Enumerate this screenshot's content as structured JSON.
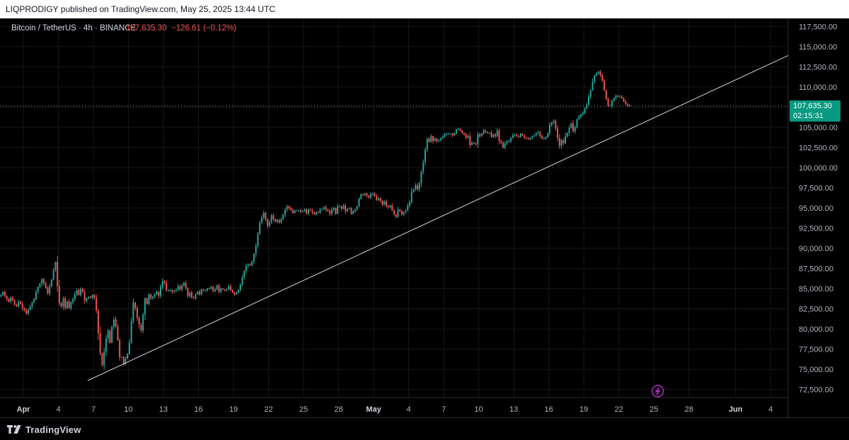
{
  "header": {
    "published_text": "LIQPRODIGY published on TradingView.com, May 25, 2025 13:44 UTC"
  },
  "legend": {
    "symbol": "Bitcoin / TetherUS · 4h · BINANCE",
    "price": "107,635.30",
    "change": "−126.61 (−0.12%)"
  },
  "price_tag": {
    "price": "107,635.30",
    "countdown": "02:15:31"
  },
  "footer": {
    "brand": "TradingView"
  },
  "colors": {
    "up": "#26a69a",
    "down": "#ef5350",
    "price_tag": "#089981",
    "background": "#000000",
    "axis_text": "#b2b5be",
    "trendline": "#d1d4dc",
    "event_icon": "#b02cc8"
  },
  "icons": {
    "event": "lightning-icon",
    "brand": "tradingview-logo-icon"
  },
  "chart_data": {
    "type": "candlestick",
    "title": "Bitcoin / TetherUS · 4h · BINANCE",
    "interval": "4h",
    "ylim": [
      71500,
      118500
    ],
    "y_ticks": [
      72500,
      75000,
      77500,
      80000,
      82500,
      85000,
      87500,
      90000,
      92500,
      95000,
      97500,
      100000,
      102500,
      105000,
      107500,
      110000,
      112500,
      115000,
      117500
    ],
    "y_tick_labels": [
      "72,500.00",
      "75,000.00",
      "77,500.00",
      "80,000.00",
      "82,500.00",
      "85,000.00",
      "87,500.00",
      "90,000.00",
      "92,500.00",
      "95,000.00",
      "97,500.00",
      "100,000.00",
      "102,500.00",
      "105,000.00",
      "107,500.00",
      "110,000.00",
      "112,500.00",
      "115,000.00",
      "117,500.00"
    ],
    "xlim": [
      "2025-03-30T00:00",
      "2025-06-05T12:00"
    ],
    "x_ticks": [
      "2025-04-01",
      "2025-04-04",
      "2025-04-07",
      "2025-04-10",
      "2025-04-13",
      "2025-04-16",
      "2025-04-19",
      "2025-04-22",
      "2025-04-25",
      "2025-04-28",
      "2025-05-01",
      "2025-05-04",
      "2025-05-07",
      "2025-05-10",
      "2025-05-13",
      "2025-05-16",
      "2025-05-19",
      "2025-05-22",
      "2025-05-25",
      "2025-05-28",
      "2025-06-01",
      "2025-06-04"
    ],
    "x_tick_labels": [
      "Apr",
      "4",
      "7",
      "10",
      "13",
      "16",
      "19",
      "22",
      "25",
      "28",
      "May",
      "4",
      "7",
      "10",
      "13",
      "16",
      "19",
      "22",
      "25",
      "28",
      "Jun",
      "4"
    ],
    "last_price": 107635.3,
    "trendline": {
      "from": {
        "x": "2025-04-06T12:00",
        "y": 73600
      },
      "to": {
        "x": "2025-06-05T12:00",
        "y": 113900
      }
    },
    "event_marker": {
      "x": "2025-05-25T08:00"
    },
    "candle_start": "2025-03-30T00:00",
    "candle_interval_hours": 4,
    "closes": [
      84200,
      84600,
      84100,
      83700,
      83400,
      83900,
      83500,
      83000,
      82800,
      83400,
      83100,
      82600,
      82300,
      81900,
      82400,
      82800,
      83300,
      83700,
      84600,
      85200,
      85600,
      86200,
      85700,
      85100,
      84400,
      85300,
      86100,
      87300,
      88300,
      85300,
      83200,
      82800,
      83800,
      82600,
      83400,
      82600,
      83300,
      83700,
      84300,
      84800,
      84200,
      85000,
      84600,
      83500,
      83800,
      84000,
      83900,
      84200,
      83900,
      82300,
      79500,
      77000,
      75500,
      77200,
      78800,
      79800,
      78300,
      80300,
      81200,
      80300,
      78600,
      76500,
      76500,
      75600,
      76300,
      76900,
      78300,
      81000,
      83300,
      82600,
      81400,
      80500,
      79800,
      81800,
      83800,
      83100,
      84300,
      83800,
      84000,
      84300,
      84600,
      84100,
      85200,
      85900,
      85700,
      84800,
      84800,
      84800,
      84600,
      84700,
      84900,
      85300,
      84900,
      85400,
      85700,
      85100,
      84100,
      84500,
      83900,
      83800,
      84300,
      84600,
      84300,
      84900,
      84800,
      84800,
      85000,
      85000,
      85200,
      84700,
      84900,
      85400,
      84600,
      85000,
      84900,
      84800,
      84900,
      85300,
      84800,
      84500,
      84300,
      84500,
      84800,
      85500,
      86400,
      87200,
      87800,
      88000,
      87900,
      88400,
      89300,
      90300,
      91800,
      93200,
      93800,
      94400,
      93600,
      92800,
      93200,
      94100,
      93600,
      93300,
      93500,
      93200,
      93600,
      94200,
      94800,
      95200,
      95000,
      94700,
      94400,
      94700,
      94700,
      94700,
      94500,
      94600,
      94800,
      94300,
      94800,
      94700,
      94400,
      94200,
      94500,
      94400,
      94800,
      94900,
      95100,
      94800,
      94600,
      94300,
      94800,
      95000,
      94300,
      95200,
      95200,
      94900,
      95300,
      94600,
      94900,
      95000,
      94300,
      94600,
      94800,
      95200,
      96200,
      96700,
      96600,
      96800,
      96500,
      96300,
      96700,
      96800,
      96500,
      96000,
      96200,
      95900,
      95400,
      95800,
      95300,
      95100,
      95300,
      94700,
      94200,
      93900,
      94800,
      94600,
      94200,
      94500,
      94700,
      95300,
      95700,
      97000,
      97300,
      97800,
      97300,
      98100,
      99500,
      100700,
      102200,
      103600,
      103200,
      103900,
      103300,
      103600,
      103300,
      103400,
      103600,
      103800,
      104200,
      104200,
      104200,
      104200,
      104000,
      104300,
      104700,
      104800,
      104600,
      104300,
      104100,
      103700,
      103900,
      102800,
      103100,
      103000,
      102900,
      104100,
      103900,
      104200,
      104600,
      104400,
      104300,
      104300,
      103800,
      104100,
      103900,
      104600,
      103300,
      103100,
      102500,
      103000,
      103200,
      103300,
      103700,
      104000,
      104100,
      103900,
      103800,
      104200,
      104000,
      103700,
      103600,
      103500,
      103700,
      103900,
      104000,
      104300,
      104400,
      103900,
      103600,
      103600,
      103800,
      104300,
      105300,
      105600,
      105800,
      104900,
      103700,
      102700,
      103400,
      103000,
      103900,
      104300,
      104900,
      105500,
      104500,
      105000,
      106000,
      106300,
      106600,
      106800,
      107300,
      107800,
      108800,
      109600,
      110700,
      111400,
      111700,
      111900,
      111400,
      110800,
      109600,
      108500,
      107700,
      107700,
      108300,
      108600,
      108900,
      108800,
      108800,
      108600,
      108200,
      107900,
      107763,
      107635
    ]
  }
}
